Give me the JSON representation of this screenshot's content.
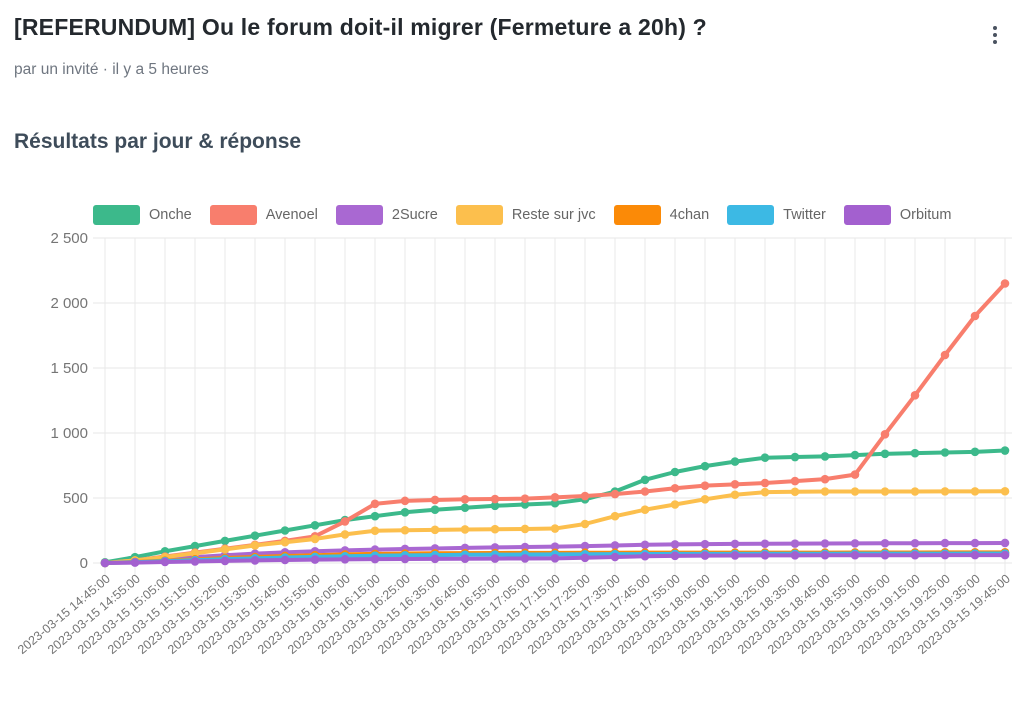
{
  "header": {
    "title": "[REFERUNDUM] Ou le forum doit-il migrer (Fermeture a 20h) ?",
    "byline": "par un invité · il y a 5 heures",
    "menu_icon": "kebab-vertical-icon"
  },
  "section": {
    "heading": "Résultats par jour & réponse"
  },
  "chart_data": {
    "type": "line",
    "title": "Résultats par jour & réponse",
    "legend_position": "top",
    "grid": true,
    "point_markers": true,
    "ylim": [
      0,
      2500
    ],
    "yticks": [
      0,
      500,
      1000,
      1500,
      2000,
      2500
    ],
    "ytick_labels": [
      "0",
      "500",
      "1 000",
      "1 500",
      "2 000",
      "2 500"
    ],
    "x_labels": [
      "2023-03-15 14:45:00",
      "2023-03-15 14:55:00",
      "2023-03-15 15:05:00",
      "2023-03-15 15:15:00",
      "2023-03-15 15:25:00",
      "2023-03-15 15:35:00",
      "2023-03-15 15:45:00",
      "2023-03-15 15:55:00",
      "2023-03-15 16:05:00",
      "2023-03-15 16:15:00",
      "2023-03-15 16:25:00",
      "2023-03-15 16:35:00",
      "2023-03-15 16:45:00",
      "2023-03-15 16:55:00",
      "2023-03-15 17:05:00",
      "2023-03-15 17:15:00",
      "2023-03-15 17:25:00",
      "2023-03-15 17:35:00",
      "2023-03-15 17:45:00",
      "2023-03-15 17:55:00",
      "2023-03-15 18:05:00",
      "2023-03-15 18:15:00",
      "2023-03-15 18:25:00",
      "2023-03-15 18:35:00",
      "2023-03-15 18:45:00",
      "2023-03-15 18:55:00",
      "2023-03-15 19:05:00",
      "2023-03-15 19:15:00",
      "2023-03-15 19:25:00",
      "2023-03-15 19:35:00",
      "2023-03-15 19:45:00"
    ],
    "series": [
      {
        "name": "Onche",
        "color": "#3cb98b",
        "values": [
          5,
          45,
          90,
          130,
          170,
          210,
          250,
          290,
          330,
          360,
          390,
          410,
          425,
          440,
          450,
          460,
          490,
          550,
          640,
          700,
          745,
          780,
          810,
          815,
          820,
          830,
          840,
          845,
          850,
          855,
          865
        ]
      },
      {
        "name": "Avenoel",
        "color": "#f87e6d",
        "values": [
          0,
          20,
          50,
          80,
          110,
          140,
          170,
          205,
          320,
          455,
          478,
          485,
          490,
          492,
          495,
          505,
          515,
          530,
          550,
          575,
          595,
          605,
          615,
          630,
          645,
          680,
          990,
          1290,
          1600,
          1900,
          2150
        ]
      },
      {
        "name": "2Sucre",
        "color": "#a968d2",
        "values": [
          0,
          12,
          28,
          45,
          60,
          72,
          82,
          90,
          97,
          103,
          108,
          112,
          116,
          120,
          123,
          126,
          130,
          135,
          140,
          143,
          145,
          147,
          148,
          149,
          150,
          151,
          152,
          152,
          153,
          153,
          154
        ]
      },
      {
        "name": "Reste sur jvc",
        "color": "#fcbf4d",
        "values": [
          0,
          20,
          45,
          75,
          105,
          135,
          160,
          185,
          220,
          248,
          252,
          255,
          258,
          260,
          262,
          265,
          300,
          360,
          410,
          450,
          490,
          525,
          545,
          548,
          550,
          550,
          550,
          550,
          551,
          551,
          552
        ]
      },
      {
        "name": "4chan",
        "color": "#fb8a07",
        "values": [
          0,
          8,
          18,
          28,
          38,
          46,
          54,
          60,
          66,
          70,
          73,
          75,
          76,
          77,
          78,
          78,
          79,
          79,
          80,
          80,
          80,
          80,
          80,
          80,
          80,
          81,
          81,
          81,
          82,
          82,
          82
        ]
      },
      {
        "name": "Twitter",
        "color": "#3cb9e4",
        "values": [
          0,
          6,
          14,
          22,
          30,
          36,
          42,
          47,
          52,
          56,
          59,
          61,
          63,
          64,
          65,
          66,
          67,
          68,
          69,
          70,
          70,
          70,
          71,
          71,
          71,
          72,
          72,
          72,
          72,
          73,
          73
        ]
      },
      {
        "name": "Orbitum",
        "color": "#a360cf",
        "values": [
          0,
          3,
          8,
          12,
          16,
          20,
          23,
          26,
          28,
          30,
          31,
          32,
          33,
          34,
          35,
          36,
          40,
          46,
          52,
          55,
          57,
          58,
          59,
          59,
          60,
          60,
          60,
          60,
          61,
          61,
          61
        ]
      }
    ]
  }
}
